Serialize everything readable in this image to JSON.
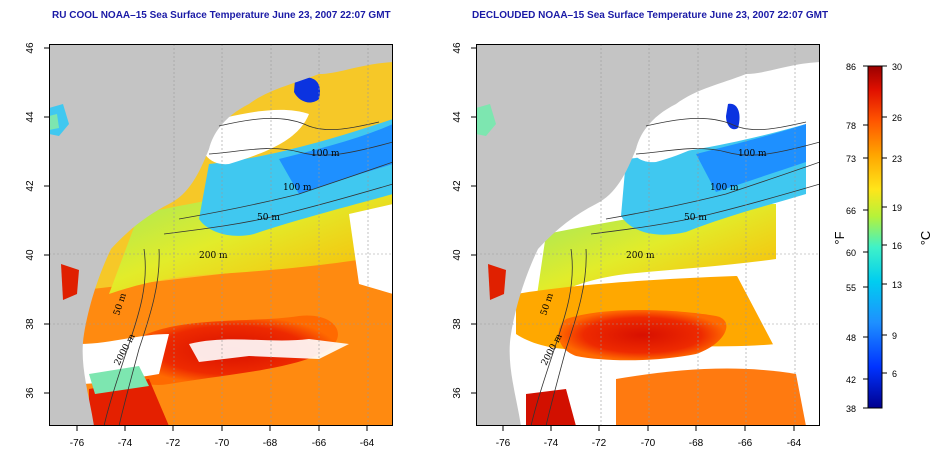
{
  "panels": [
    {
      "title": "RU COOL NOAA–15 Sea Surface Temperature June 23, 2007 22:07 GMT",
      "lat_ticks": [
        "46",
        "44",
        "42",
        "40",
        "38",
        "36"
      ],
      "lon_ticks": [
        "-76",
        "-74",
        "-72",
        "-70",
        "-68",
        "-66",
        "-64"
      ],
      "contour_labels": [
        "100 m",
        "100 m",
        "50 m",
        "200 m",
        "50 m",
        "2000 m"
      ]
    },
    {
      "title": "DECLOUDED NOAA–15 Sea Surface Temperature June 23, 2007 22:07 GMT",
      "lat_ticks": [
        "46",
        "44",
        "42",
        "40",
        "38",
        "36"
      ],
      "lon_ticks": [
        "-76",
        "-74",
        "-72",
        "-70",
        "-68",
        "-66",
        "-64"
      ],
      "contour_labels": [
        "100 m",
        "100 m",
        "50 m",
        "200 m",
        "50 m",
        "2000 m"
      ]
    }
  ],
  "colorbar": {
    "fahrenheit_ticks": [
      "86",
      "78",
      "73",
      "66",
      "60",
      "55",
      "48",
      "42",
      "38"
    ],
    "celsius_ticks": [
      "30",
      "26",
      "23",
      "19",
      "16",
      "13",
      "9",
      "6"
    ],
    "fahrenheit_unit": "°F",
    "celsius_unit": "°C",
    "range_celsius": [
      3.3,
      30
    ],
    "colors": [
      "#00008f",
      "#0033ff",
      "#1e90ff",
      "#00cdf0",
      "#3ff2c8",
      "#b5f23a",
      "#ffe51a",
      "#ffa500",
      "#ff5500",
      "#e01000",
      "#9a0000"
    ]
  },
  "colors": {
    "land": "#c4c4c4",
    "cloud": "#ffffff",
    "title": "#1a1aa6"
  }
}
